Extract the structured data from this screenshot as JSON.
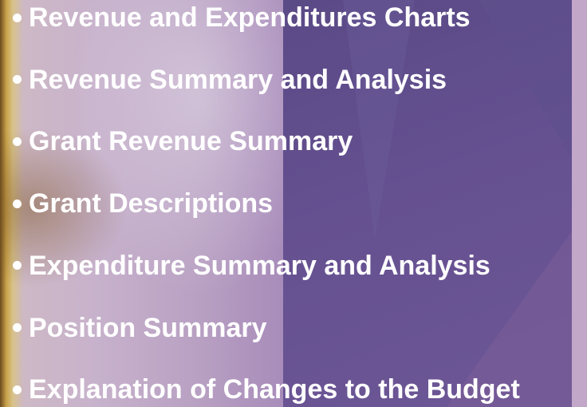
{
  "items": [
    "Revenue and Expenditures Charts",
    "Revenue Summary and Analysis",
    "Grant Revenue Summary",
    "Grant Descriptions",
    "Expenditure Summary and Analysis",
    "Position Summary",
    "Explanation of Changes to the Budget"
  ]
}
